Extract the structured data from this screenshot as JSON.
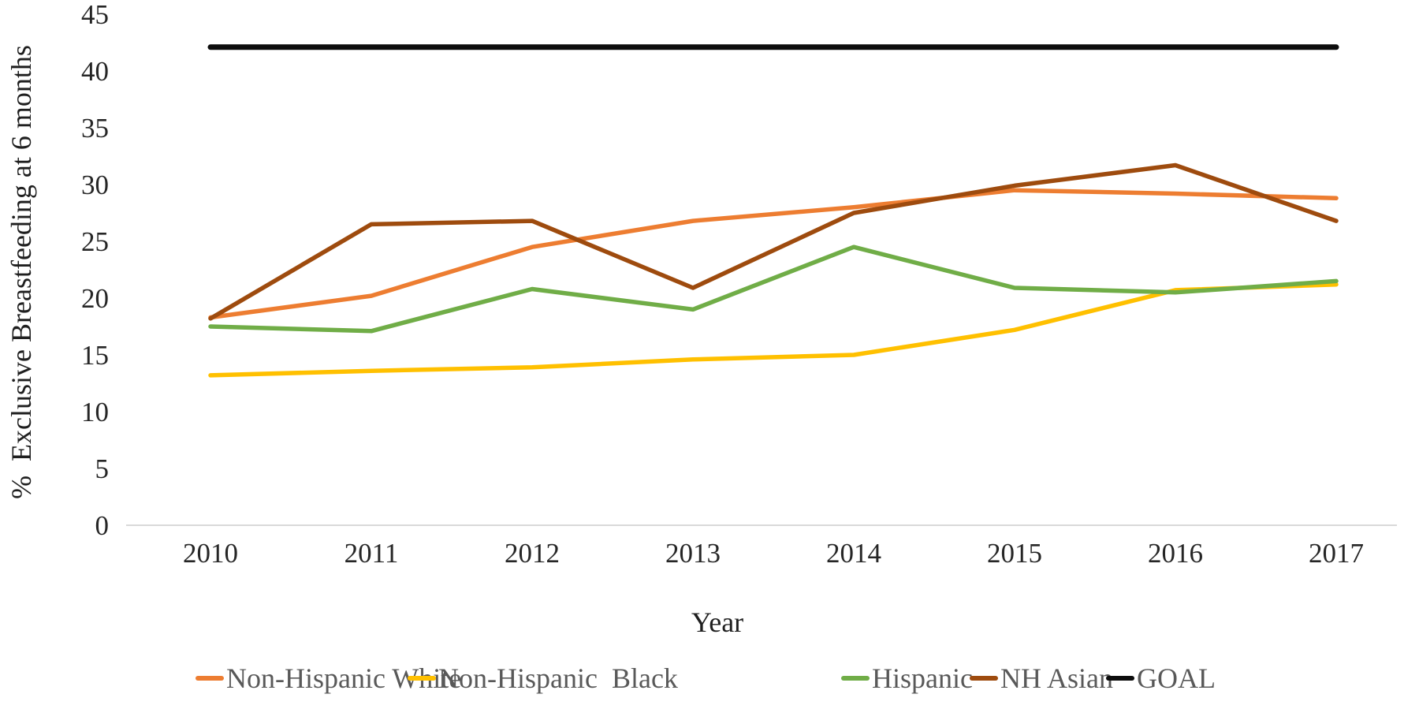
{
  "chart_data": {
    "type": "line",
    "title": "",
    "xlabel": "Year",
    "ylabel": "%  Exclusive Breastfeeding at 6 months",
    "x": [
      2010,
      2011,
      2012,
      2013,
      2014,
      2015,
      2016,
      2017
    ],
    "ylim": [
      0,
      45
    ],
    "ytick_step": 5,
    "yticks": [
      0,
      5,
      10,
      15,
      20,
      25,
      30,
      35,
      40,
      45
    ],
    "grid": false,
    "legend_position": "bottom",
    "series": [
      {
        "name": "Non-Hispanic White",
        "color": "#ED7D31",
        "width": 5.5,
        "values": [
          18.3,
          20.2,
          24.5,
          26.8,
          28.0,
          29.5,
          29.2,
          28.8
        ]
      },
      {
        "name": "Non-Hispanic  Black",
        "color": "#FFC000",
        "width": 5.5,
        "values": [
          13.2,
          13.6,
          13.9,
          14.6,
          15.0,
          17.2,
          20.7,
          21.2
        ]
      },
      {
        "name": "Hispanic",
        "color": "#70AD47",
        "width": 5.5,
        "values": [
          17.5,
          17.1,
          20.8,
          19.0,
          24.5,
          20.9,
          20.5,
          21.5
        ]
      },
      {
        "name": "NH Asian",
        "color": "#9E4B0E",
        "width": 5.5,
        "values": [
          18.2,
          26.5,
          26.8,
          20.9,
          27.5,
          29.9,
          31.7,
          26.8
        ]
      },
      {
        "name": "GOAL",
        "color": "#0D0D0D",
        "width": 7,
        "values": [
          42.1,
          42.1,
          42.1,
          42.1,
          42.1,
          42.1,
          42.1,
          42.1
        ]
      }
    ],
    "colors": {
      "axis_line": "#D9D9D9",
      "tick_label": "#262626",
      "legend_text": "#595959"
    }
  }
}
